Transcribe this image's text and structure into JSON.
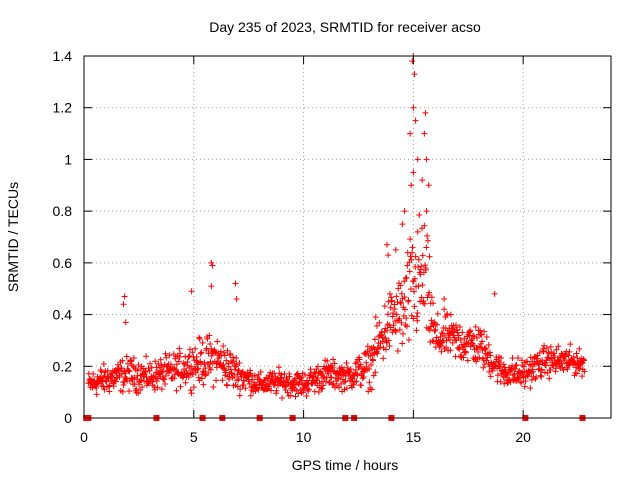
{
  "chart_data": {
    "type": "scatter",
    "title": "Day 235 of 2023, SRMTID for receiver acso",
    "xlabel": "GPS time / hours",
    "ylabel": "SRMTID / TECUs",
    "xlim": [
      0,
      24
    ],
    "ylim": [
      0,
      1.4
    ],
    "xticks": [
      0,
      5,
      10,
      15,
      20
    ],
    "xtick_labels": [
      "0",
      "5",
      "10",
      "15",
      "20"
    ],
    "yticks": [
      0,
      0.2,
      0.4,
      0.6,
      0.8,
      1.0,
      1.2,
      1.4
    ],
    "ytick_labels": [
      "0",
      "0.2",
      "0.4",
      "0.6",
      "0.8",
      "1",
      "1.2",
      "1.4"
    ],
    "grid": true,
    "marker": "plus",
    "series": [
      {
        "name": "SRMTID",
        "color": "#ff0000",
        "envelope": {
          "note": "approximate mean level of the scattered points vs. GPS time (hours)",
          "x": [
            0.2,
            1,
            2,
            3,
            4,
            5,
            6,
            7,
            8,
            9,
            10,
            11,
            12,
            13,
            13.5,
            14,
            14.5,
            15,
            15.5,
            16,
            16.5,
            17,
            18,
            19,
            20,
            21,
            22,
            22.8
          ],
          "y": [
            0.13,
            0.15,
            0.17,
            0.16,
            0.18,
            0.21,
            0.23,
            0.17,
            0.13,
            0.14,
            0.13,
            0.17,
            0.16,
            0.2,
            0.3,
            0.38,
            0.4,
            0.5,
            0.55,
            0.3,
            0.32,
            0.3,
            0.28,
            0.18,
            0.17,
            0.22,
            0.22,
            0.21
          ],
          "spread": [
            0.06,
            0.07,
            0.08,
            0.07,
            0.08,
            0.1,
            0.12,
            0.08,
            0.05,
            0.06,
            0.06,
            0.07,
            0.06,
            0.1,
            0.15,
            0.15,
            0.2,
            0.3,
            0.3,
            0.12,
            0.1,
            0.1,
            0.1,
            0.07,
            0.07,
            0.07,
            0.07,
            0.05
          ]
        },
        "highlights": [
          {
            "x": 15.0,
            "y": 1.4
          },
          {
            "x": 14.95,
            "y": 1.38
          },
          {
            "x": 15.05,
            "y": 1.33
          },
          {
            "x": 15.0,
            "y": 1.2
          },
          {
            "x": 15.1,
            "y": 1.15
          },
          {
            "x": 14.85,
            "y": 1.1
          },
          {
            "x": 15.55,
            "y": 1.18
          },
          {
            "x": 15.5,
            "y": 1.1
          },
          {
            "x": 15.2,
            "y": 1.0
          },
          {
            "x": 15.6,
            "y": 1.0
          },
          {
            "x": 15.0,
            "y": 0.95
          },
          {
            "x": 14.9,
            "y": 0.9
          },
          {
            "x": 15.4,
            "y": 0.92
          },
          {
            "x": 15.7,
            "y": 0.9
          },
          {
            "x": 14.6,
            "y": 0.8
          },
          {
            "x": 15.6,
            "y": 0.8
          },
          {
            "x": 14.5,
            "y": 0.75
          },
          {
            "x": 15.2,
            "y": 0.72
          },
          {
            "x": 13.8,
            "y": 0.67
          },
          {
            "x": 14.2,
            "y": 0.65
          },
          {
            "x": 5.8,
            "y": 0.6
          },
          {
            "x": 5.85,
            "y": 0.59
          },
          {
            "x": 5.8,
            "y": 0.51
          },
          {
            "x": 6.9,
            "y": 0.52
          },
          {
            "x": 6.95,
            "y": 0.46
          },
          {
            "x": 4.9,
            "y": 0.49
          },
          {
            "x": 1.85,
            "y": 0.47
          },
          {
            "x": 1.8,
            "y": 0.44
          },
          {
            "x": 1.9,
            "y": 0.37
          },
          {
            "x": 16.4,
            "y": 0.46
          },
          {
            "x": 18.7,
            "y": 0.48
          },
          {
            "x": 13.85,
            "y": 0.63
          }
        ],
        "baseline_markers_x": [
          0.1,
          0.2,
          3.3,
          5.4,
          6.3,
          8.0,
          9.5,
          11.9,
          12.3,
          14.0,
          20.1,
          22.7
        ]
      }
    ]
  }
}
